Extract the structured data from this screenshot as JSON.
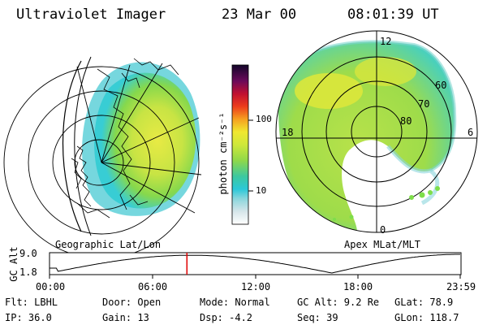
{
  "header": {
    "instrument": "Ultraviolet Imager",
    "date": "23 Mar 00",
    "time": "08:01:39 UT"
  },
  "colorbar": {
    "unit_label": "photon cm⁻²s⁻¹",
    "ticks": [
      "100",
      "10"
    ]
  },
  "left_panel": {
    "caption": "Geographic Lat/Lon"
  },
  "right_panel": {
    "caption": "Apex MLat/MLT",
    "mlt_labels": {
      "top": "12",
      "left": "18",
      "right": "6",
      "bottom": "0"
    },
    "lat_labels": [
      "60",
      "70",
      "80"
    ]
  },
  "altitude_plot": {
    "ylabel": "GC Alt",
    "yticks": [
      "9.0",
      "1.8"
    ],
    "xticks": [
      "00:00",
      "06:00",
      "12:00",
      "18:00",
      "23:59"
    ],
    "marker_hour": 8.03
  },
  "footer": {
    "flt": "Flt: LBHL",
    "ip": "IP: 36.0",
    "door": "Door: Open",
    "gain": "Gain: 13",
    "mode": "Mode: Normal",
    "dsp": "Dsp:    -4.2",
    "gcalt": "GC Alt: 9.2 Re",
    "seq": "Seq: 39",
    "glat": "GLat:  78.9",
    "glon": "GLon: 118.7"
  },
  "colors": {
    "marker": "#e00000",
    "aurora_green": "#9ee04a",
    "aurora_yellow": "#e6ea3a",
    "aurora_cyan": "#34d0d8"
  }
}
